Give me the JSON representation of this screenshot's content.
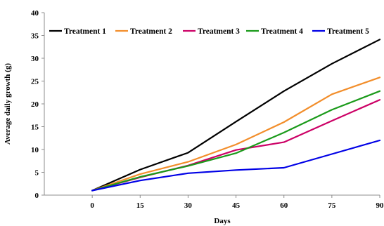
{
  "chart_data": {
    "type": "line",
    "title": "",
    "xlabel": "Days",
    "ylabel": "Average daily growth (g)",
    "x": [
      0,
      15,
      30,
      45,
      60,
      75,
      90
    ],
    "x_tick_labels": [
      "0",
      "15",
      "30",
      "45",
      "60",
      "75",
      "90"
    ],
    "y_tick_labels": [
      "0",
      "5",
      "10",
      "15",
      "20",
      "25",
      "30",
      "35",
      "40"
    ],
    "xlim": [
      -15,
      90
    ],
    "ylim": [
      0,
      40
    ],
    "grid": false,
    "legend_position": "top",
    "series": [
      {
        "name": "Treatment 1",
        "color": "#000000",
        "values": [
          1.0,
          5.6,
          9.3,
          16.1,
          22.8,
          28.8,
          34.1
        ]
      },
      {
        "name": "Treatment 2",
        "color": "#f28e2b",
        "values": [
          1.0,
          4.6,
          7.3,
          11.1,
          16.0,
          22.1,
          25.8
        ]
      },
      {
        "name": "Treatment 3",
        "color": "#cc0066",
        "values": [
          1.0,
          3.9,
          6.5,
          9.9,
          11.6,
          16.3,
          20.9
        ]
      },
      {
        "name": "Treatment 4",
        "color": "#1a9a1a",
        "values": [
          1.0,
          4.0,
          6.4,
          9.2,
          13.7,
          18.7,
          22.8
        ]
      },
      {
        "name": "Treatment 5",
        "color": "#0000e6",
        "values": [
          1.0,
          3.2,
          4.8,
          5.5,
          6.0,
          9.0,
          12.0
        ]
      }
    ]
  }
}
